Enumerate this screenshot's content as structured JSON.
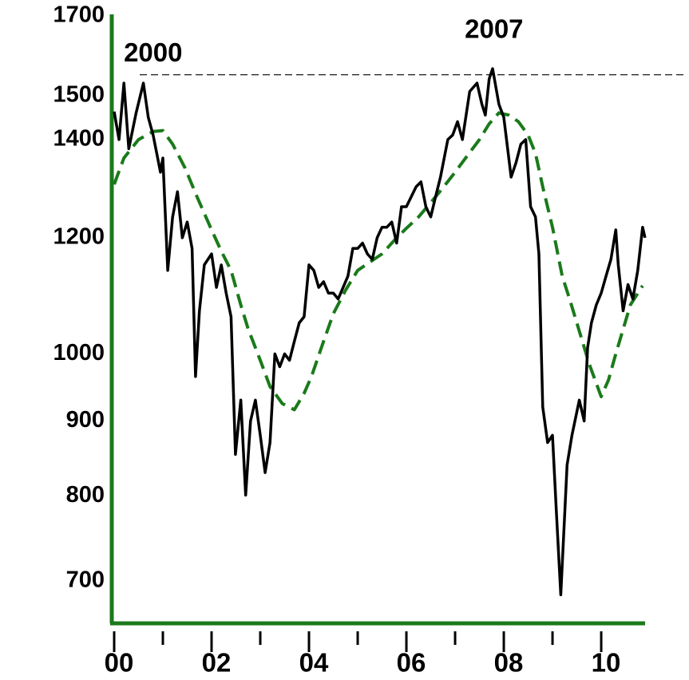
{
  "chart_data": {
    "type": "line",
    "yscale": "log",
    "annotations": [
      {
        "text": "2000",
        "x": 2000.8,
        "y": 1600
      },
      {
        "text": "2007",
        "x": 2007.8,
        "y": 1660
      }
    ],
    "reference_line": {
      "value": 1550,
      "color": "#000000",
      "dash": true
    },
    "xlim": [
      2000,
      2010.95
    ],
    "ylim": [
      655,
      1700
    ],
    "xticks": [
      {
        "value": 2000,
        "label": "00"
      },
      {
        "value": 2002,
        "label": "02"
      },
      {
        "value": 2004,
        "label": "04"
      },
      {
        "value": 2006,
        "label": "06"
      },
      {
        "value": 2008,
        "label": "08"
      },
      {
        "value": 2010,
        "label": "10"
      }
    ],
    "xminor_ticks": [
      2001,
      2003,
      2005,
      2007,
      2009
    ],
    "yticks": [
      700,
      800,
      900,
      1000,
      1200,
      1400,
      1500,
      1700
    ],
    "grid": false,
    "axis_color": "#1a7a1a",
    "series": [
      {
        "color": "#000000",
        "dash": false,
        "x": [
          2000.0,
          2000.1,
          2000.2,
          2000.3,
          2000.45,
          2000.6,
          2000.7,
          2000.8,
          2000.95,
          2001.0,
          2001.1,
          2001.2,
          2001.3,
          2001.4,
          2001.5,
          2001.6,
          2001.67,
          2001.75,
          2001.85,
          2002.0,
          2002.1,
          2002.2,
          2002.3,
          2002.4,
          2002.49,
          2002.6,
          2002.7,
          2002.8,
          2002.9,
          2003.0,
          2003.1,
          2003.2,
          2003.3,
          2003.4,
          2003.5,
          2003.6,
          2003.7,
          2003.8,
          2003.9,
          2004.0,
          2004.1,
          2004.2,
          2004.3,
          2004.4,
          2004.5,
          2004.6,
          2004.8,
          2004.9,
          2005.0,
          2005.1,
          2005.2,
          2005.3,
          2005.4,
          2005.5,
          2005.6,
          2005.7,
          2005.8,
          2005.9,
          2006.0,
          2006.2,
          2006.3,
          2006.4,
          2006.5,
          2006.6,
          2006.7,
          2006.85,
          2006.95,
          2007.05,
          2007.15,
          2007.3,
          2007.45,
          2007.55,
          2007.62,
          2007.7,
          2007.77,
          2007.9,
          2008.0,
          2008.15,
          2008.25,
          2008.35,
          2008.45,
          2008.55,
          2008.65,
          2008.72,
          2008.8,
          2008.9,
          2009.0,
          2009.08,
          2009.17,
          2009.3,
          2009.4,
          2009.55,
          2009.65,
          2009.72,
          2009.8,
          2009.9,
          2010.0,
          2010.1,
          2010.2,
          2010.3,
          2010.35,
          2010.45,
          2010.55,
          2010.65,
          2010.75,
          2010.85,
          2010.9
        ],
        "values": [
          1463,
          1400,
          1530,
          1380,
          1460,
          1530,
          1450,
          1410,
          1330,
          1360,
          1140,
          1240,
          1290,
          1200,
          1230,
          1180,
          965,
          1070,
          1150,
          1170,
          1110,
          1150,
          1100,
          1060,
          854,
          930,
          801,
          900,
          930,
          880,
          830,
          870,
          1000,
          980,
          1000,
          990,
          1020,
          1050,
          1060,
          1150,
          1140,
          1110,
          1120,
          1100,
          1100,
          1090,
          1130,
          1180,
          1180,
          1190,
          1170,
          1160,
          1200,
          1220,
          1220,
          1230,
          1190,
          1260,
          1260,
          1300,
          1310,
          1260,
          1240,
          1280,
          1320,
          1400,
          1410,
          1440,
          1400,
          1510,
          1530,
          1480,
          1455,
          1540,
          1565,
          1480,
          1450,
          1320,
          1350,
          1390,
          1400,
          1260,
          1240,
          1170,
          920,
          870,
          880,
          780,
          685,
          840,
          880,
          930,
          900,
          1010,
          1050,
          1080,
          1100,
          1130,
          1160,
          1215,
          1150,
          1070,
          1115,
          1090,
          1140,
          1220,
          1200
        ]
      },
      {
        "color": "#1a7a1a",
        "dash": true,
        "x": [
          2000.0,
          2000.2,
          2000.5,
          2000.8,
          2001.0,
          2001.2,
          2001.45,
          2001.7,
          2002.0,
          2002.2,
          2002.4,
          2002.6,
          2002.75,
          2003.0,
          2003.2,
          2003.45,
          2003.7,
          2003.9,
          2004.05,
          2004.3,
          2004.5,
          2004.75,
          2005.0,
          2005.25,
          2005.5,
          2005.75,
          2006.0,
          2006.25,
          2006.5,
          2006.75,
          2007.0,
          2007.25,
          2007.5,
          2007.7,
          2007.9,
          2008.1,
          2008.3,
          2008.5,
          2008.65,
          2008.8,
          2009.0,
          2009.2,
          2009.35,
          2009.5,
          2009.75,
          2010.0,
          2010.15,
          2010.3,
          2010.6,
          2010.85
        ],
        "values": [
          1305,
          1360,
          1400,
          1418,
          1420,
          1390,
          1340,
          1280,
          1215,
          1175,
          1140,
          1080,
          1040,
          990,
          950,
          925,
          916,
          940,
          965,
          1020,
          1065,
          1105,
          1140,
          1155,
          1170,
          1195,
          1218,
          1240,
          1268,
          1298,
          1330,
          1365,
          1400,
          1435,
          1460,
          1455,
          1440,
          1410,
          1370,
          1300,
          1220,
          1130,
          1090,
          1050,
          985,
          935,
          960,
          1000,
          1080,
          1113
        ]
      }
    ]
  }
}
